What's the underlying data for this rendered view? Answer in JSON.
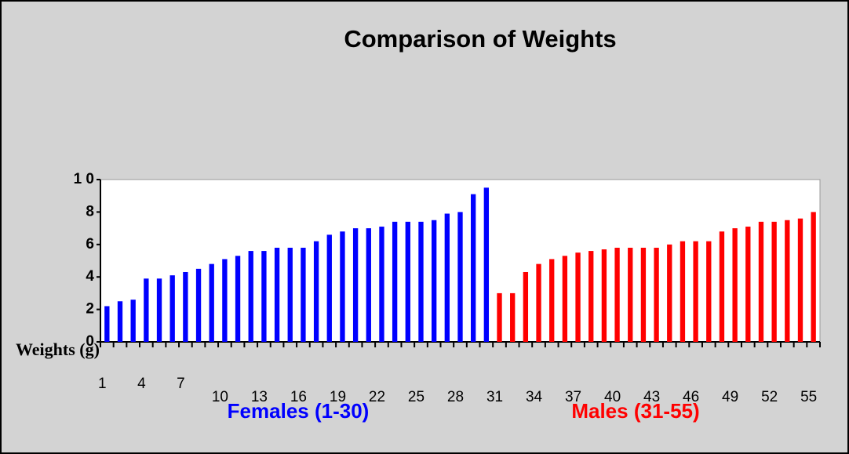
{
  "chart_data": {
    "type": "bar",
    "title": "Comparison of Weights",
    "y_label": "Weights (g)",
    "categories": [
      "1",
      null,
      null,
      "4",
      null,
      null,
      "7",
      null,
      null,
      "10",
      null,
      null,
      "13",
      null,
      null,
      "16",
      null,
      null,
      "19",
      null,
      null,
      "22",
      null,
      null,
      "25",
      null,
      null,
      "28",
      null,
      null,
      "31",
      null,
      null,
      "34",
      null,
      null,
      "37",
      null,
      null,
      "40",
      null,
      null,
      "43",
      null,
      null,
      "46",
      null,
      null,
      "49",
      null,
      null,
      "52",
      null,
      null,
      "55"
    ],
    "series": [
      {
        "name": "Females (1-30)",
        "color": "#0000ff",
        "values": [
          2.2,
          2.5,
          2.6,
          3.9,
          3.9,
          4.1,
          4.3,
          4.5,
          4.8,
          5.1,
          5.3,
          5.6,
          5.6,
          5.8,
          5.8,
          5.8,
          6.2,
          6.6,
          6.8,
          7.0,
          7.0,
          7.1,
          7.4,
          7.4,
          7.4,
          7.5,
          7.9,
          8.0,
          9.1,
          9.5,
          null,
          null,
          null,
          null,
          null,
          null,
          null,
          null,
          null,
          null,
          null,
          null,
          null,
          null,
          null,
          null,
          null,
          null,
          null,
          null,
          null,
          null,
          null,
          null,
          null
        ]
      },
      {
        "name": "Males (31-55)",
        "color": "#ff0000",
        "values": [
          null,
          null,
          null,
          null,
          null,
          null,
          null,
          null,
          null,
          null,
          null,
          null,
          null,
          null,
          null,
          null,
          null,
          null,
          null,
          null,
          null,
          null,
          null,
          null,
          null,
          null,
          null,
          null,
          null,
          null,
          3.0,
          3.0,
          4.3,
          4.8,
          5.1,
          5.3,
          5.5,
          5.6,
          5.7,
          5.8,
          5.8,
          5.8,
          5.8,
          6.0,
          6.2,
          6.2,
          6.2,
          6.8,
          7.0,
          7.1,
          7.4,
          7.4,
          7.5,
          7.6,
          8.0
        ]
      }
    ],
    "ylim": [
      0,
      10
    ],
    "yticks": [
      0,
      2,
      4,
      6,
      8,
      {
        "value": 10,
        "label": "1 0"
      }
    ]
  }
}
